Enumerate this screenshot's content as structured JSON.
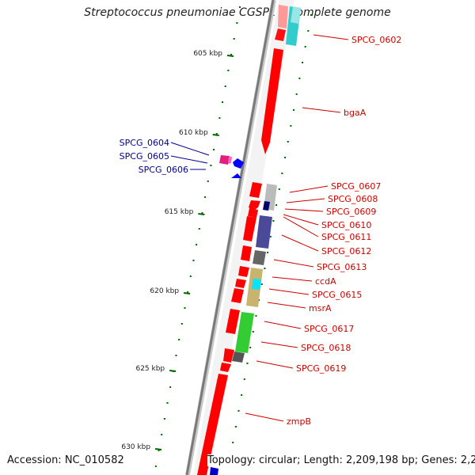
{
  "title": "Streptococcus pneumoniae CGSP14, complete genome",
  "footer": {
    "accession": "Accession: NC_010582",
    "topology": "Topology: circular; Length: 2,209,198 bp; Genes: 2,276"
  },
  "ruler": {
    "ticks": [
      {
        "label": "605 kbp",
        "pos": 605
      },
      {
        "label": "610 kbp",
        "pos": 610
      },
      {
        "label": "615 kbp",
        "pos": 615
      },
      {
        "label": "620 kbp",
        "pos": 620
      },
      {
        "label": "625 kbp",
        "pos": 625
      },
      {
        "label": "630 kbp",
        "pos": 630
      }
    ]
  },
  "genes_right": [
    {
      "name": "SPCG_0602"
    },
    {
      "name": "bgaA"
    },
    {
      "name": "SPCG_0607"
    },
    {
      "name": "SPCG_0608"
    },
    {
      "name": "SPCG_0609"
    },
    {
      "name": "SPCG_0610"
    },
    {
      "name": "SPCG_0611"
    },
    {
      "name": "SPCG_0612"
    },
    {
      "name": "SPCG_0613"
    },
    {
      "name": "ccdA"
    },
    {
      "name": "SPCG_0615"
    },
    {
      "name": "msrA"
    },
    {
      "name": "SPCG_0617"
    },
    {
      "name": "SPCG_0618"
    },
    {
      "name": "SPCG_0619"
    },
    {
      "name": "zmpB"
    }
  ],
  "genes_left": [
    {
      "name": "SPCG_0604"
    },
    {
      "name": "SPCG_0605"
    },
    {
      "name": "SPCG_0606"
    }
  ],
  "colors": {
    "backbone": "#808080",
    "gene_forward": "#ff0000",
    "gene_reverse": "#0000ff",
    "tick": "#006400",
    "label_red": "#cc0000",
    "label_blue": "#00008b"
  }
}
